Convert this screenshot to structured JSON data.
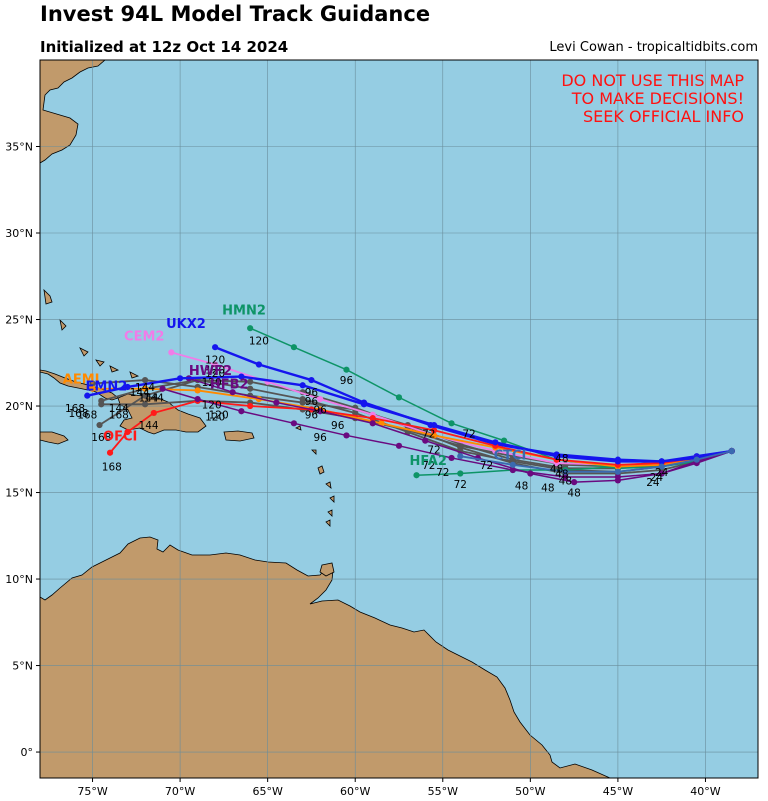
{
  "header": {
    "title": "Invest 94L Model Track Guidance",
    "subtitle": "Initialized at 12z Oct 14 2024",
    "credit": "Levi Cowan - tropicaltidbits.com"
  },
  "warning": [
    "DO NOT USE THIS MAP",
    "TO MAKE DECISIONS!",
    "SEEK OFFICIAL INFO"
  ],
  "map": {
    "extent": {
      "lon": [
        -78,
        -37
      ],
      "lat": [
        -1.5,
        40
      ]
    },
    "lon_ticks": [
      {
        "value": -75,
        "label": "75°W"
      },
      {
        "value": -70,
        "label": "70°W"
      },
      {
        "value": -65,
        "label": "65°W"
      },
      {
        "value": -60,
        "label": "60°W"
      },
      {
        "value": -55,
        "label": "55°W"
      },
      {
        "value": -50,
        "label": "50°W"
      },
      {
        "value": -45,
        "label": "45°W"
      },
      {
        "value": -40,
        "label": "40°W"
      }
    ],
    "lat_ticks": [
      {
        "value": 0,
        "label": "0°"
      },
      {
        "value": 5,
        "label": "5°N"
      },
      {
        "value": 10,
        "label": "10°N"
      },
      {
        "value": 15,
        "label": "15°N"
      },
      {
        "value": 20,
        "label": "20°N"
      },
      {
        "value": 25,
        "label": "25°N"
      },
      {
        "value": 30,
        "label": "30°N"
      },
      {
        "value": 35,
        "label": "35°N"
      }
    ],
    "colors": {
      "ocean": "#95cde3",
      "land": "#c19a6b",
      "grid": "#6a8d9b"
    }
  },
  "models": [
    {
      "name": "HMN2",
      "color": "#0e9467",
      "width": 1.5,
      "track": [
        [
          -38.5,
          17.4
        ],
        [
          -40.5,
          16.8
        ],
        [
          -42.5,
          16.5
        ],
        [
          -45,
          16.4
        ],
        [
          -48.5,
          16.9
        ],
        [
          -51.5,
          18
        ],
        [
          -54.5,
          19
        ],
        [
          -57.5,
          20.5
        ],
        [
          -60.5,
          22.1
        ],
        [
          -63.5,
          23.4
        ],
        [
          -66,
          24.5
        ]
      ],
      "label_pos": [
        -67.6,
        25.3
      ],
      "hour_labels": [
        {
          "text": "96",
          "lon": -60.5,
          "lat": 21.5
        },
        {
          "text": "120",
          "lon": -65.5,
          "lat": 23.8
        }
      ]
    },
    {
      "name": "HFA2",
      "color": "#0e9467",
      "width": 1.5,
      "track": [
        [
          -38.5,
          17.4
        ],
        [
          -40.5,
          16.8
        ],
        [
          -42.5,
          16.6
        ],
        [
          -45,
          16.5
        ],
        [
          -48,
          16.3
        ],
        [
          -51,
          16.3
        ],
        [
          -54,
          16.1
        ],
        [
          -56.5,
          16
        ]
      ],
      "label_pos": [
        -56.9,
        16.6
      ],
      "hour_labels": [
        {
          "text": "72",
          "lon": -54,
          "lat": 15.5
        }
      ]
    },
    {
      "name": "UKX2",
      "color": "#1515ee",
      "width": 2.4,
      "track": [
        [
          -38.5,
          17.4
        ],
        [
          -40.5,
          17.1
        ],
        [
          -42.5,
          16.8
        ],
        [
          -45,
          16.9
        ],
        [
          -48.5,
          17.2
        ],
        [
          -52,
          17.8
        ],
        [
          -55.7,
          18.9
        ],
        [
          -59.5,
          20.2
        ],
        [
          -62.5,
          21.5
        ],
        [
          -65.5,
          22.4
        ],
        [
          -68,
          23.4
        ]
      ],
      "label_pos": [
        -70.8,
        24.5
      ],
      "hour_labels": [
        {
          "text": "120",
          "lon": -68,
          "lat": 22.7
        }
      ]
    },
    {
      "name": "CEM2",
      "color": "#f07ce8",
      "width": 1.8,
      "track": [
        [
          -38.5,
          17.4
        ],
        [
          -40.5,
          17
        ],
        [
          -42.5,
          16.7
        ],
        [
          -45,
          16.6
        ],
        [
          -48.5,
          16.7
        ],
        [
          -52,
          17.4
        ],
        [
          -55.5,
          18.3
        ],
        [
          -59,
          19.5
        ],
        [
          -62,
          20.4
        ],
        [
          -65,
          21.4
        ],
        [
          -68,
          22.4
        ],
        [
          -70.5,
          23.1
        ]
      ],
      "label_pos": [
        -73.2,
        23.8
      ],
      "hour_labels": [
        {
          "text": "120",
          "lon": -68,
          "lat": 22.1
        }
      ]
    },
    {
      "name": "AEMI",
      "color": "#ff8a00",
      "width": 1.8,
      "track": [
        [
          -38.5,
          17.4
        ],
        [
          -40.5,
          16.9
        ],
        [
          -42.5,
          16.6
        ],
        [
          -45,
          16.5
        ],
        [
          -48.5,
          16.9
        ],
        [
          -52,
          17.6
        ],
        [
          -55.5,
          18.3
        ],
        [
          -58.5,
          19
        ],
        [
          -62,
          19.8
        ],
        [
          -65.5,
          20.4
        ],
        [
          -69,
          20.9
        ],
        [
          -72,
          21
        ],
        [
          -75,
          21
        ]
      ],
      "label_pos": [
        -76.7,
        21.3
      ],
      "hour_labels": [
        {
          "text": "168",
          "lon": -76,
          "lat": 19.9
        },
        {
          "text": "144",
          "lon": -71.5,
          "lat": 20.5
        }
      ]
    },
    {
      "name": "OFCI",
      "color": "#ff1a1a",
      "width": 1.8,
      "track": [
        [
          -38.5,
          17.4
        ],
        [
          -40.5,
          17
        ],
        [
          -42.5,
          16.7
        ],
        [
          -45,
          16.6
        ],
        [
          -48.5,
          16.9
        ],
        [
          -52,
          17.7
        ],
        [
          -55.5,
          18.6
        ],
        [
          -59,
          19.3
        ],
        [
          -62.5,
          19.8
        ],
        [
          -66,
          20
        ],
        [
          -69,
          20.3
        ],
        [
          -71.5,
          19.6
        ],
        [
          -73,
          18.5
        ],
        [
          -74,
          17.3
        ]
      ],
      "label_pos": [
        -74.4,
        18
      ],
      "hour_labels": [
        {
          "text": "144",
          "lon": -71.8,
          "lat": 18.9
        },
        {
          "text": "168",
          "lon": -73.9,
          "lat": 16.5
        }
      ]
    },
    {
      "name": "HWF2",
      "color": "#6a0a80",
      "width": 1.5,
      "track": [
        [
          -38.5,
          17.4
        ],
        [
          -40.5,
          16.8
        ],
        [
          -42.5,
          16.1
        ],
        [
          -45,
          15.7
        ],
        [
          -47.5,
          15.6
        ],
        [
          -50,
          16.1
        ],
        [
          -53,
          17
        ],
        [
          -56,
          18
        ],
        [
          -59,
          19
        ],
        [
          -62,
          19.7
        ],
        [
          -64.5,
          20.2
        ],
        [
          -67,
          20.8
        ],
        [
          -69.5,
          21.6
        ]
      ],
      "label_pos": [
        -69.5,
        21.8
      ],
      "hour_labels": [
        {
          "text": "96",
          "lon": -62.5,
          "lat": 19.5
        },
        {
          "text": "48",
          "lon": -47.5,
          "lat": 15
        }
      ]
    },
    {
      "name": "HFB2",
      "color": "#6a0a80",
      "width": 1.5,
      "track": [
        [
          -38.5,
          17.4
        ],
        [
          -40.5,
          16.7
        ],
        [
          -42.5,
          16.1
        ],
        [
          -45,
          15.9
        ],
        [
          -48,
          15.9
        ],
        [
          -51,
          16.3
        ],
        [
          -54.5,
          17
        ],
        [
          -57.5,
          17.7
        ],
        [
          -60.5,
          18.3
        ],
        [
          -63.5,
          19
        ],
        [
          -66.5,
          19.7
        ],
        [
          -69,
          20.4
        ],
        [
          -71,
          21
        ]
      ],
      "label_pos": [
        -68.3,
        21
      ],
      "hour_labels": [
        {
          "text": "96",
          "lon": -61,
          "lat": 18.9
        },
        {
          "text": "120",
          "lon": -68,
          "lat": 19.4
        }
      ]
    },
    {
      "name": "EMN2",
      "color": "#1515ee",
      "width": 2.4,
      "track": [
        [
          -38.5,
          17.4
        ],
        [
          -40.5,
          17
        ],
        [
          -42.5,
          16.8
        ],
        [
          -45,
          16.8
        ],
        [
          -48.5,
          17.1
        ],
        [
          -52,
          17.9
        ],
        [
          -55.5,
          18.9
        ],
        [
          -59.5,
          20.1
        ],
        [
          -63,
          21.2
        ],
        [
          -66.5,
          21.7
        ],
        [
          -70,
          21.6
        ],
        [
          -73,
          21.1
        ],
        [
          -75.3,
          20.6
        ]
      ],
      "label_pos": [
        -75.4,
        20.9
      ],
      "hour_labels": [
        {
          "text": "144",
          "lon": -72,
          "lat": 21.1
        },
        {
          "text": "168",
          "lon": -75.8,
          "lat": 19.6
        }
      ]
    },
    {
      "name": "CTCI",
      "color": "#3a6ab0",
      "width": 1.8,
      "track": [
        [
          -38.5,
          17.4
        ],
        [
          -40.5,
          16.9
        ],
        [
          -42.5,
          16.5
        ],
        [
          -45,
          16.2
        ],
        [
          -48,
          16.2
        ],
        [
          -51,
          16.6
        ],
        [
          -54,
          17.1
        ]
      ],
      "label_pos": [
        -52.1,
        16.9
      ],
      "hour_labels": [
        {
          "text": "48",
          "lon": -48.2,
          "lat": 17
        }
      ]
    }
  ],
  "ensemble": [
    {
      "color": "#555555",
      "track": [
        [
          -38.5,
          17.4
        ],
        [
          -40.5,
          16.9
        ],
        [
          -42.5,
          16.5
        ],
        [
          -45,
          16.2
        ],
        [
          -48,
          16.3
        ],
        [
          -51,
          16.8
        ],
        [
          -54,
          17.4
        ],
        [
          -57,
          18.5
        ],
        [
          -60,
          19.6
        ],
        [
          -63,
          20.4
        ],
        [
          -66,
          21
        ],
        [
          -69,
          21.5
        ],
        [
          -72,
          21
        ],
        [
          -74.5,
          20.3
        ]
      ]
    },
    {
      "color": "#555555",
      "track": [
        [
          -38.5,
          17.4
        ],
        [
          -40.5,
          16.8
        ],
        [
          -42.5,
          16.3
        ],
        [
          -45,
          16.1
        ],
        [
          -48,
          16.1
        ],
        [
          -51,
          16.7
        ],
        [
          -54,
          17.6
        ],
        [
          -57,
          18.8
        ],
        [
          -60,
          19.9
        ],
        [
          -63,
          20.8
        ],
        [
          -66,
          21.4
        ],
        [
          -69,
          21.5
        ],
        [
          -72,
          20.6
        ],
        [
          -74.6,
          18.9
        ]
      ]
    },
    {
      "color": "#555555",
      "track": [
        [
          -38.5,
          17.4
        ],
        [
          -40.5,
          16.9
        ],
        [
          -42.5,
          16.6
        ],
        [
          -45,
          16.4
        ],
        [
          -48,
          16.4
        ],
        [
          -51,
          16.9
        ],
        [
          -54,
          17.8
        ],
        [
          -57,
          18.9
        ],
        [
          -60,
          19.8
        ],
        [
          -63,
          20.2
        ],
        [
          -66,
          20.6
        ],
        [
          -69,
          21.1
        ],
        [
          -72,
          21.5
        ],
        [
          -75,
          21.3
        ]
      ]
    },
    {
      "color": "#555555",
      "track": [
        [
          -38.5,
          17.4
        ],
        [
          -40.5,
          17
        ],
        [
          -42.5,
          16.8
        ],
        [
          -45,
          16.5
        ],
        [
          -48,
          16.6
        ],
        [
          -51,
          17.1
        ],
        [
          -54,
          17.7
        ],
        [
          -57,
          18.6
        ],
        [
          -60,
          19.3
        ],
        [
          -63,
          19.8
        ],
        [
          -66,
          20.2
        ],
        [
          -69,
          20.3
        ],
        [
          -72,
          20.1
        ],
        [
          -74.5,
          20.1
        ]
      ]
    }
  ],
  "hour_labels_misc": [
    {
      "text": "24",
      "lon": -42.5,
      "lat": 16.2
    },
    {
      "text": "24",
      "lon": -42.8,
      "lat": 15.9
    },
    {
      "text": "24",
      "lon": -43,
      "lat": 15.6
    },
    {
      "text": "48",
      "lon": -48.5,
      "lat": 16.4
    },
    {
      "text": "48",
      "lon": -48.2,
      "lat": 16.1
    },
    {
      "text": "48",
      "lon": -48,
      "lat": 15.7
    },
    {
      "text": "48",
      "lon": -49,
      "lat": 15.3
    },
    {
      "text": "48",
      "lon": -50.5,
      "lat": 15.4
    },
    {
      "text": "72",
      "lon": -55,
      "lat": 16.2
    },
    {
      "text": "72",
      "lon": -52.5,
      "lat": 16.6
    },
    {
      "text": "72",
      "lon": -55.8,
      "lat": 18.4
    },
    {
      "text": "72",
      "lon": -53.5,
      "lat": 18.4
    },
    {
      "text": "72",
      "lon": -55.5,
      "lat": 17.5
    },
    {
      "text": "72",
      "lon": -55.8,
      "lat": 16.6
    },
    {
      "text": "96",
      "lon": -62.5,
      "lat": 20.8
    },
    {
      "text": "96",
      "lon": -62.5,
      "lat": 20.3
    },
    {
      "text": "96",
      "lon": -62,
      "lat": 19.8
    },
    {
      "text": "96",
      "lon": -62,
      "lat": 18.2
    },
    {
      "text": "120",
      "lon": -68,
      "lat": 21.9
    },
    {
      "text": "120",
      "lon": -68.2,
      "lat": 21.4
    },
    {
      "text": "120",
      "lon": -68.2,
      "lat": 20.1
    },
    {
      "text": "120",
      "lon": -67.8,
      "lat": 19.5
    },
    {
      "text": "144",
      "lon": -72.3,
      "lat": 20.8
    },
    {
      "text": "144",
      "lon": -73.5,
      "lat": 19.9
    },
    {
      "text": "144",
      "lon": -71.8,
      "lat": 20.5
    },
    {
      "text": "168",
      "lon": -75.3,
      "lat": 19.5
    },
    {
      "text": "168",
      "lon": -73.5,
      "lat": 19.5
    },
    {
      "text": "168",
      "lon": -74.5,
      "lat": 18.2
    }
  ]
}
